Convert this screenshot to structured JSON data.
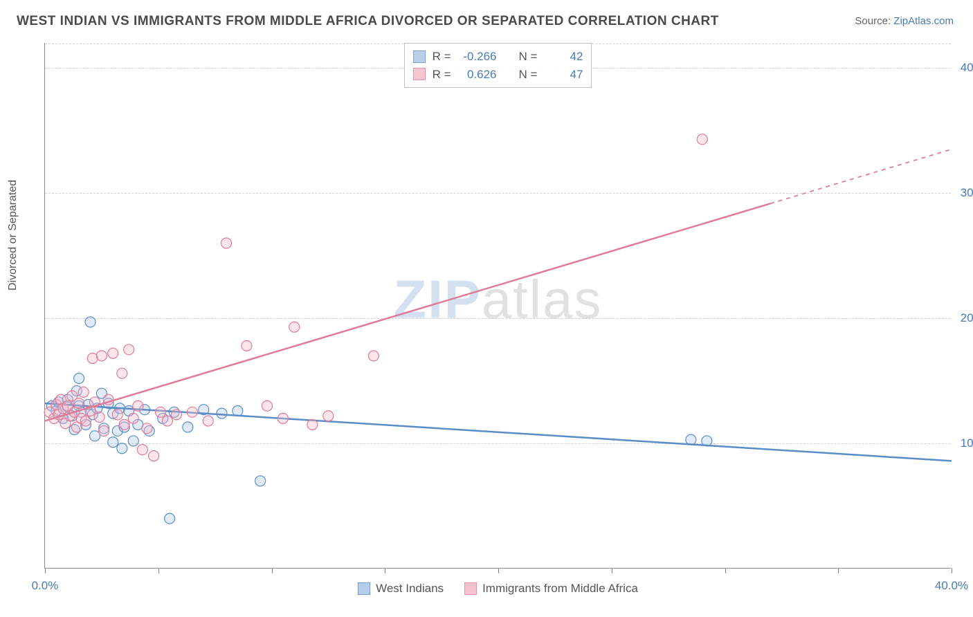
{
  "title": "WEST INDIAN VS IMMIGRANTS FROM MIDDLE AFRICA DIVORCED OR SEPARATED CORRELATION CHART",
  "source_label": "Source:",
  "source_name": "ZipAtlas.com",
  "watermark_zip": "ZIP",
  "watermark_atlas": "atlas",
  "ylabel": "Divorced or Separated",
  "chart": {
    "type": "scatter-with-regression",
    "background_color": "#ffffff",
    "grid_color": "#d0d0d0",
    "axis_color": "#888888",
    "label_fontsize": 16,
    "tick_fontsize": 17,
    "tick_color": "#4a7ab8",
    "xlim": [
      0,
      40
    ],
    "ylim": [
      0,
      42
    ],
    "xticks": [
      0,
      5,
      10,
      15,
      20,
      25,
      30,
      35,
      40
    ],
    "yticks": [
      10,
      20,
      30,
      40
    ],
    "xtick_labels": {
      "0": "0.0%",
      "40": "40.0%"
    },
    "ytick_labels": {
      "10": "10.0%",
      "20": "20.0%",
      "30": "30.0%",
      "40": "40.0%"
    },
    "marker_radius": 7.5,
    "marker_fill_opacity": 0.35,
    "marker_stroke_width": 1.2,
    "line_width": 2.5,
    "series": [
      {
        "key": "west_indians",
        "label": "West Indians",
        "color": "#6f9fd8",
        "fill": "#a8c5e8",
        "stroke": "#5a8cc7",
        "R": "-0.266",
        "N": "42",
        "regression": {
          "x1": 0,
          "y1": 13.2,
          "x2": 40,
          "y2": 8.6,
          "solid_until_x": 40
        },
        "points": [
          [
            0.3,
            13.0
          ],
          [
            0.5,
            12.6
          ],
          [
            0.6,
            13.3
          ],
          [
            0.8,
            12.0
          ],
          [
            1.0,
            13.5
          ],
          [
            1.0,
            12.9
          ],
          [
            1.2,
            12.2
          ],
          [
            1.3,
            11.1
          ],
          [
            1.4,
            14.2
          ],
          [
            1.5,
            13.0
          ],
          [
            1.5,
            15.2
          ],
          [
            1.6,
            12.5
          ],
          [
            1.8,
            11.5
          ],
          [
            1.9,
            13.1
          ],
          [
            2.0,
            19.7
          ],
          [
            2.1,
            12.3
          ],
          [
            2.2,
            10.6
          ],
          [
            2.3,
            12.8
          ],
          [
            2.5,
            14.0
          ],
          [
            2.6,
            11.2
          ],
          [
            2.8,
            13.2
          ],
          [
            3.0,
            12.4
          ],
          [
            3.0,
            10.1
          ],
          [
            3.2,
            11.0
          ],
          [
            3.3,
            12.8
          ],
          [
            3.4,
            9.6
          ],
          [
            3.5,
            11.3
          ],
          [
            3.7,
            12.6
          ],
          [
            3.9,
            10.2
          ],
          [
            4.1,
            11.5
          ],
          [
            4.4,
            12.7
          ],
          [
            4.6,
            11.0
          ],
          [
            5.2,
            12.0
          ],
          [
            5.5,
            4.0
          ],
          [
            5.7,
            12.5
          ],
          [
            6.3,
            11.3
          ],
          [
            7.0,
            12.7
          ],
          [
            7.8,
            12.4
          ],
          [
            8.5,
            12.6
          ],
          [
            9.5,
            7.0
          ],
          [
            28.5,
            10.3
          ],
          [
            29.2,
            10.2
          ]
        ]
      },
      {
        "key": "middle_africa",
        "label": "Immigrants from Middle Africa",
        "color": "#e68aa4",
        "fill": "#f5b8c9",
        "stroke": "#e07b97",
        "R": "0.626",
        "N": "47",
        "regression": {
          "x1": 0,
          "y1": 11.8,
          "x2": 40,
          "y2": 33.5,
          "solid_until_x": 32
        },
        "points": [
          [
            0.2,
            12.5
          ],
          [
            0.4,
            12.0
          ],
          [
            0.5,
            13.1
          ],
          [
            0.6,
            12.3
          ],
          [
            0.7,
            13.5
          ],
          [
            0.8,
            12.8
          ],
          [
            0.9,
            11.6
          ],
          [
            1.0,
            13.0
          ],
          [
            1.1,
            12.2
          ],
          [
            1.2,
            13.8
          ],
          [
            1.3,
            12.5
          ],
          [
            1.4,
            11.3
          ],
          [
            1.5,
            13.2
          ],
          [
            1.6,
            12.0
          ],
          [
            1.7,
            14.1
          ],
          [
            1.8,
            11.8
          ],
          [
            2.0,
            12.6
          ],
          [
            2.1,
            16.8
          ],
          [
            2.2,
            13.3
          ],
          [
            2.4,
            12.1
          ],
          [
            2.5,
            17.0
          ],
          [
            2.6,
            11.0
          ],
          [
            2.8,
            13.5
          ],
          [
            3.0,
            17.2
          ],
          [
            3.2,
            12.3
          ],
          [
            3.4,
            15.6
          ],
          [
            3.5,
            11.5
          ],
          [
            3.7,
            17.5
          ],
          [
            3.9,
            12.0
          ],
          [
            4.1,
            13.0
          ],
          [
            4.3,
            9.5
          ],
          [
            4.5,
            11.2
          ],
          [
            4.8,
            9.0
          ],
          [
            5.1,
            12.5
          ],
          [
            5.4,
            11.8
          ],
          [
            5.8,
            12.3
          ],
          [
            6.5,
            12.5
          ],
          [
            7.2,
            11.8
          ],
          [
            8.0,
            26.0
          ],
          [
            8.9,
            17.8
          ],
          [
            9.8,
            13.0
          ],
          [
            10.5,
            12.0
          ],
          [
            11.0,
            19.3
          ],
          [
            11.8,
            11.5
          ],
          [
            12.5,
            12.2
          ],
          [
            14.5,
            17.0
          ],
          [
            29.0,
            34.3
          ]
        ]
      }
    ]
  },
  "statbox": {
    "label_R": "R =",
    "label_N": "N ="
  }
}
